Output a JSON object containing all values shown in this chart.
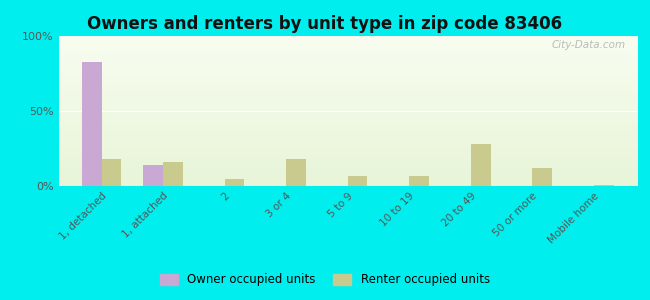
{
  "title": "Owners and renters by unit type in zip code 83406",
  "categories": [
    "1, detached",
    "1, attached",
    "2",
    "3 or 4",
    "5 to 9",
    "10 to 19",
    "20 to 49",
    "50 or more",
    "Mobile home"
  ],
  "owner_values": [
    83,
    14,
    0,
    0,
    0,
    0,
    0,
    0,
    0
  ],
  "renter_values": [
    18,
    16,
    5,
    18,
    7,
    7,
    28,
    12,
    1
  ],
  "owner_color": "#c9a8d4",
  "renter_color": "#c8ca8e",
  "outer_bg": "#00eeee",
  "ylim": [
    0,
    100
  ],
  "yticks": [
    0,
    50,
    100
  ],
  "ytick_labels": [
    "0%",
    "50%",
    "100%"
  ],
  "watermark": "City-Data.com",
  "legend_owner": "Owner occupied units",
  "legend_renter": "Renter occupied units",
  "bar_width": 0.32,
  "title_fontsize": 12
}
